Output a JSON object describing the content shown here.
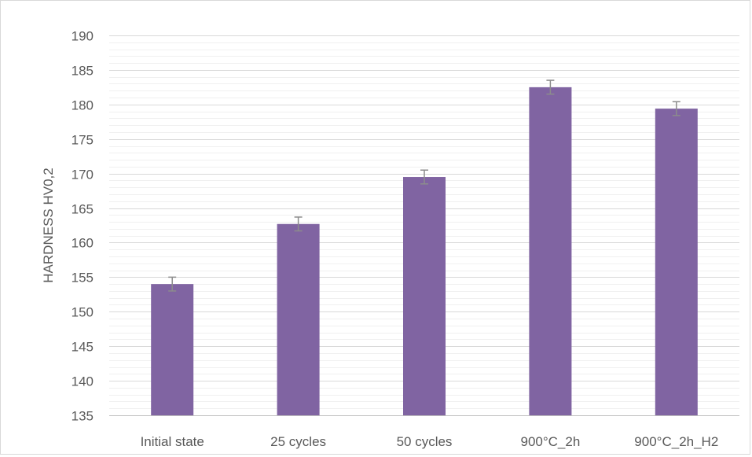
{
  "chart_data": {
    "type": "bar",
    "categories": [
      "Initial state",
      "25 cycles",
      "50 cycles",
      "900°C_2h",
      "900°C_2h_H2"
    ],
    "values": [
      154.0,
      162.7,
      169.5,
      182.5,
      179.4
    ],
    "error": [
      1.0,
      1.0,
      1.0,
      1.0,
      1.0
    ],
    "xlabel": "",
    "ylabel": "HARDNESS HV0,2",
    "ylim": [
      135,
      190
    ],
    "yticks": [
      135,
      140,
      145,
      150,
      155,
      160,
      165,
      170,
      175,
      180,
      185,
      190
    ],
    "grid": true,
    "minor_grid_step": 1,
    "legend": "none",
    "colors": {
      "bar": "#8064a2",
      "error_bar": "#8c8c8c",
      "major_grid": "#d9d9d9",
      "minor_grid": "#f0f0f0",
      "axis": "#bfbfbf",
      "text": "#595959"
    }
  }
}
